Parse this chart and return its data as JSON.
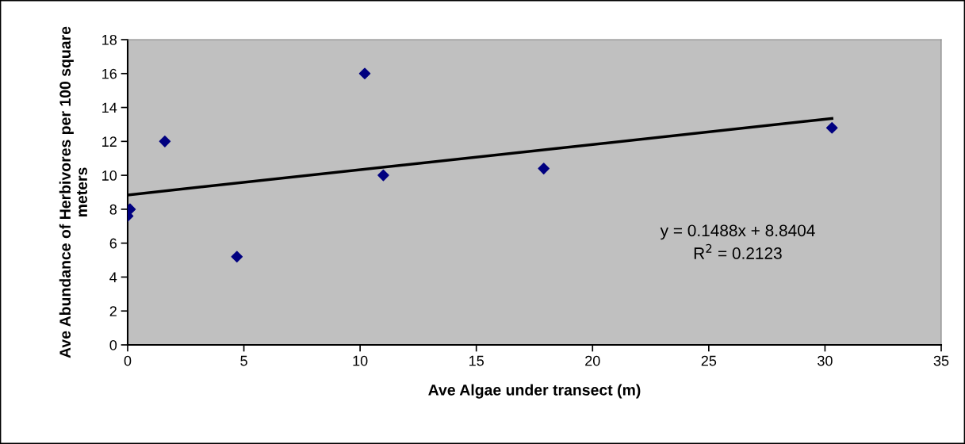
{
  "chart_data": {
    "type": "scatter",
    "xlabel": "Ave Algae under transect (m)",
    "ylabel": "Ave Abundance of Herbivores per 100 square meters",
    "series": [
      {
        "color": "#000080",
        "marker": "diamond",
        "x": [
          0,
          0.1,
          1.6,
          4.7,
          10.2,
          11.0,
          17.9,
          30.3
        ],
        "values": [
          7.6,
          8.0,
          12.0,
          5.2,
          16.0,
          10.0,
          10.4,
          12.8
        ]
      },
      {
        "type": "line",
        "color": "#000000",
        "line_style": "solid",
        "marker": "none",
        "x": [
          0,
          30.3
        ],
        "values": [
          8.84,
          13.35
        ]
      }
    ],
    "annotations": [
      "y = 0.1488x + 8.8404",
      "R$^{2}$ = 0.2123"
    ],
    "xlim": [
      0,
      35
    ],
    "xticks": [
      0,
      5,
      10,
      15,
      20,
      25,
      30,
      35
    ],
    "ylim": [
      0,
      18
    ],
    "yticks": [
      0,
      2,
      4,
      6,
      8,
      10,
      12,
      14,
      16,
      18
    ],
    "grid": false,
    "legend": false
  }
}
